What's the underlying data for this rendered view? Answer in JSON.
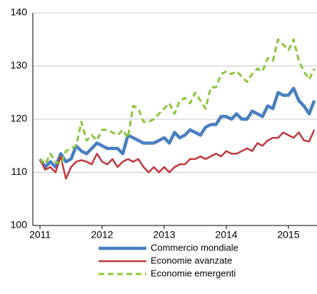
{
  "chart_data": {
    "type": "line",
    "x": [
      2011,
      2011.0833,
      2011.1667,
      2011.25,
      2011.3333,
      2011.4167,
      2011.5,
      2011.5833,
      2011.6667,
      2011.75,
      2011.8333,
      2011.9167,
      2012,
      2012.0833,
      2012.1667,
      2012.25,
      2012.3333,
      2012.4167,
      2012.5,
      2012.5833,
      2012.6667,
      2012.75,
      2012.8333,
      2012.9167,
      2013,
      2013.0833,
      2013.1667,
      2013.25,
      2013.3333,
      2013.4167,
      2013.5,
      2013.5833,
      2013.6667,
      2013.75,
      2013.8333,
      2013.9167,
      2014,
      2014.0833,
      2014.1667,
      2014.25,
      2014.3333,
      2014.4167,
      2014.5,
      2014.5833,
      2014.6667,
      2014.75,
      2014.8333,
      2014.9167,
      2015,
      2015.0833,
      2015.1667,
      2015.25,
      2015.3333,
      2015.4167
    ],
    "series": [
      {
        "name": "Commercio mondiale",
        "color": "#4a7fc1",
        "values": [
          112.5,
          111,
          112,
          111,
          113.5,
          112,
          112.5,
          115,
          114,
          113.5,
          114.5,
          115.5,
          115,
          114.5,
          114.5,
          114.5,
          113.5,
          117,
          116.5,
          116,
          115.5,
          115.5,
          115.5,
          116,
          116.5,
          115.5,
          117.5,
          116.5,
          117,
          118,
          117.5,
          117,
          118.5,
          119,
          119,
          120.5,
          120.5,
          120,
          121,
          120,
          120,
          121.5,
          121,
          120.5,
          122.5,
          122,
          125,
          124.5,
          124.5,
          125.8,
          123.5,
          122.5,
          121,
          123.5
        ]
      },
      {
        "name": "Economie avanzate",
        "color": "#c0383e",
        "values": [
          112.5,
          110.5,
          111,
          110,
          113,
          108.8,
          111,
          112,
          112.3,
          112,
          111.5,
          113.5,
          112,
          111.5,
          112.5,
          111,
          112,
          112.5,
          112,
          112.5,
          111,
          110,
          111,
          110,
          111,
          110,
          111,
          111.5,
          111.5,
          112.5,
          112.5,
          113,
          112.5,
          113,
          113.5,
          113,
          114,
          113.5,
          113.5,
          114,
          114.5,
          114,
          115.5,
          115,
          116,
          116.5,
          116.5,
          117.5,
          117,
          116.5,
          117.5,
          116,
          115.8,
          118
        ]
      },
      {
        "name": "Economie emergenti",
        "color": "#8dc63f",
        "values": [
          112.5,
          111.5,
          113.5,
          112,
          111.5,
          114,
          114.5,
          115,
          119.5,
          116,
          117,
          116,
          118,
          118,
          117.5,
          117,
          118,
          116.5,
          122.5,
          122,
          119.5,
          119.5,
          120,
          121,
          122,
          123,
          121,
          123.5,
          124,
          123,
          125,
          123.5,
          122,
          126,
          126,
          128.5,
          129,
          128.5,
          129,
          128,
          127,
          128.5,
          129.5,
          129,
          131.5,
          131,
          135,
          134,
          133,
          135,
          131,
          129,
          127.5,
          129.5
        ]
      }
    ],
    "xlim": [
      2010.885,
      2015.46
    ],
    "xticks": [
      2011,
      2012,
      2013,
      2014,
      2015
    ],
    "ylim": [
      100,
      140
    ],
    "yticks": [
      100,
      110,
      120,
      130,
      140
    ],
    "grid": true,
    "legend": "bottom"
  }
}
